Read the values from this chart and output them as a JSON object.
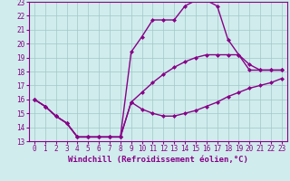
{
  "xlabel": "Windchill (Refroidissement éolien,°C)",
  "line1_x": [
    0,
    1,
    2,
    3,
    4,
    5,
    6,
    7,
    8,
    9,
    10,
    11,
    12,
    13,
    14,
    15,
    16,
    17,
    18,
    19,
    20,
    21,
    22,
    23
  ],
  "line1_y": [
    16.0,
    15.5,
    14.8,
    14.3,
    13.3,
    13.3,
    13.3,
    13.3,
    13.3,
    15.8,
    15.3,
    15.0,
    14.8,
    14.8,
    15.0,
    15.2,
    15.5,
    15.8,
    16.2,
    16.5,
    16.8,
    17.0,
    17.2,
    17.5
  ],
  "line2_x": [
    0,
    1,
    2,
    3,
    4,
    5,
    6,
    7,
    8,
    9,
    10,
    11,
    12,
    13,
    14,
    15,
    16,
    17,
    18,
    19,
    20,
    21,
    22,
    23
  ],
  "line2_y": [
    16.0,
    15.5,
    14.8,
    14.3,
    13.3,
    13.3,
    13.3,
    13.3,
    13.3,
    15.8,
    16.5,
    17.2,
    17.8,
    18.3,
    18.7,
    19.0,
    19.2,
    19.2,
    19.2,
    19.2,
    18.1,
    18.1,
    18.1,
    18.1
  ],
  "line3_x": [
    0,
    1,
    2,
    3,
    4,
    5,
    6,
    7,
    8,
    9,
    10,
    11,
    12,
    13,
    14,
    15,
    16,
    17,
    18,
    19,
    20,
    21,
    22,
    23
  ],
  "line3_y": [
    16.0,
    15.5,
    14.8,
    14.3,
    13.3,
    13.3,
    13.3,
    13.3,
    13.3,
    19.4,
    20.5,
    21.7,
    21.7,
    21.7,
    22.7,
    23.1,
    23.1,
    22.7,
    20.3,
    19.2,
    18.5,
    18.1,
    18.1,
    18.1
  ],
  "line_color": "#880088",
  "marker": "D",
  "markersize": 2.5,
  "bg_color": "#d0ecec",
  "grid_color": "#a0c8c8",
  "ylim": [
    13,
    23
  ],
  "xlim": [
    -0.5,
    23.5
  ],
  "yticks": [
    13,
    14,
    15,
    16,
    17,
    18,
    19,
    20,
    21,
    22,
    23
  ],
  "xticks": [
    0,
    1,
    2,
    3,
    4,
    5,
    6,
    7,
    8,
    9,
    10,
    11,
    12,
    13,
    14,
    15,
    16,
    17,
    18,
    19,
    20,
    21,
    22,
    23
  ],
  "xlabel_fontsize": 6.5,
  "tick_fontsize": 5.5,
  "line_width": 1.0
}
